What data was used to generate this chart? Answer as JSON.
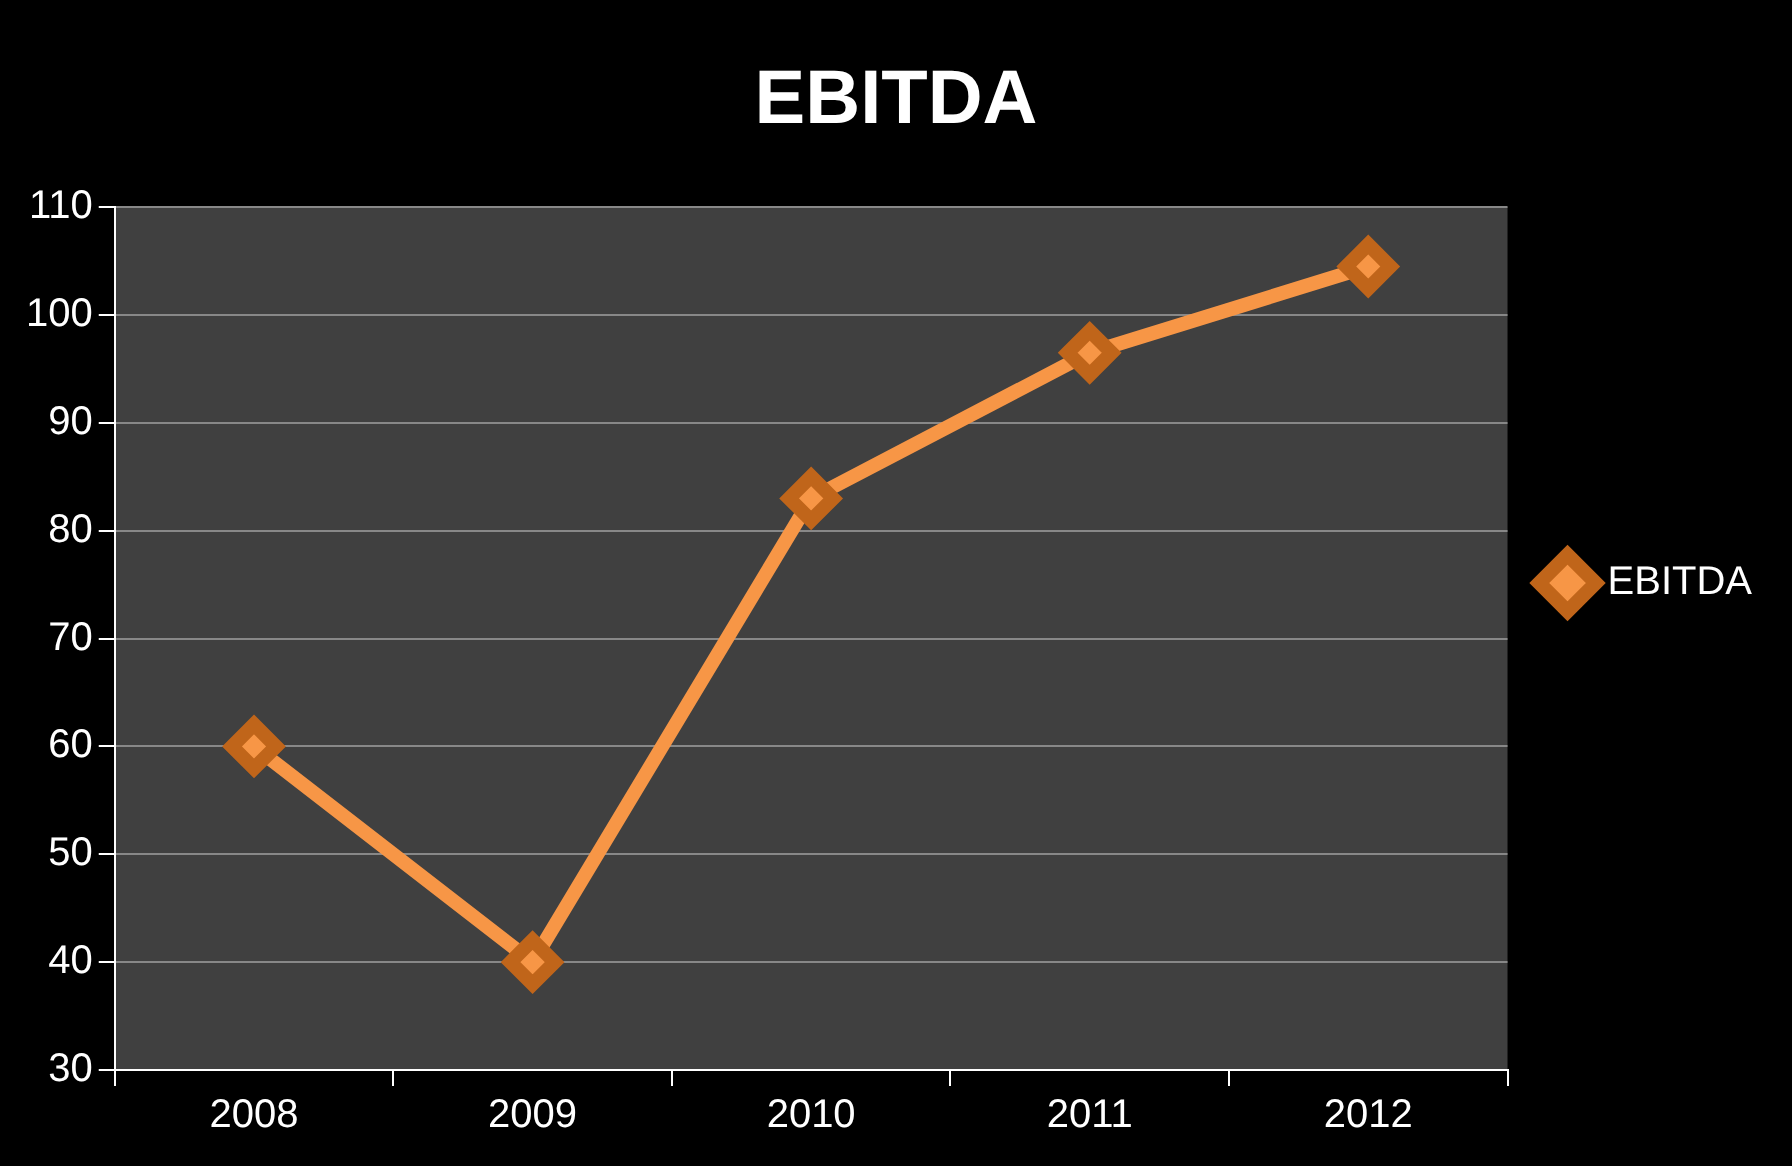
{
  "chart_data": {
    "type": "line",
    "title": "EBITDA",
    "categories": [
      "2008",
      "2009",
      "2010",
      "2011",
      "2012"
    ],
    "series": [
      {
        "name": "EBITDA",
        "color": "#f79646",
        "values": [
          60,
          40,
          83,
          96.5,
          104.5
        ]
      }
    ],
    "ylim": [
      30,
      110
    ],
    "yticks": [
      30,
      40,
      50,
      60,
      70,
      80,
      90,
      100,
      110
    ],
    "grid": "y",
    "legend": "right",
    "marker": "diamond",
    "line_style": "solid"
  }
}
